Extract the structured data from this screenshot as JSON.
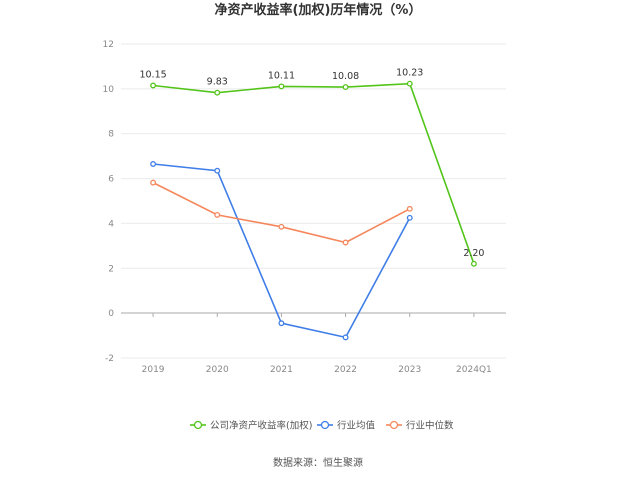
{
  "chart_data": {
    "type": "line",
    "title": "净资产收益率(加权)历年情况（%）",
    "categories": [
      "2019",
      "2020",
      "2021",
      "2022",
      "2023",
      "2024Q1"
    ],
    "ylim": [
      -2,
      12
    ],
    "yticks": [
      -2,
      0,
      2,
      4,
      6,
      8,
      10,
      12
    ],
    "grid": true,
    "legend_position": "bottom",
    "series": [
      {
        "name": "公司净资产收益率(加权)",
        "color": "#52c41a",
        "values": [
          10.15,
          9.83,
          10.11,
          10.08,
          10.23,
          2.2
        ],
        "labels": [
          "10.15",
          "9.83",
          "10.11",
          "10.08",
          "10.23",
          "2.20"
        ]
      },
      {
        "name": "行业均值",
        "color": "#3f7ee8",
        "values": [
          6.65,
          6.35,
          -0.45,
          -1.08,
          4.25,
          null
        ]
      },
      {
        "name": "行业中位数",
        "color": "#f5875c",
        "values": [
          5.82,
          4.38,
          3.85,
          3.15,
          4.65,
          null
        ]
      }
    ]
  },
  "source_text": "数据来源：恒生聚源"
}
